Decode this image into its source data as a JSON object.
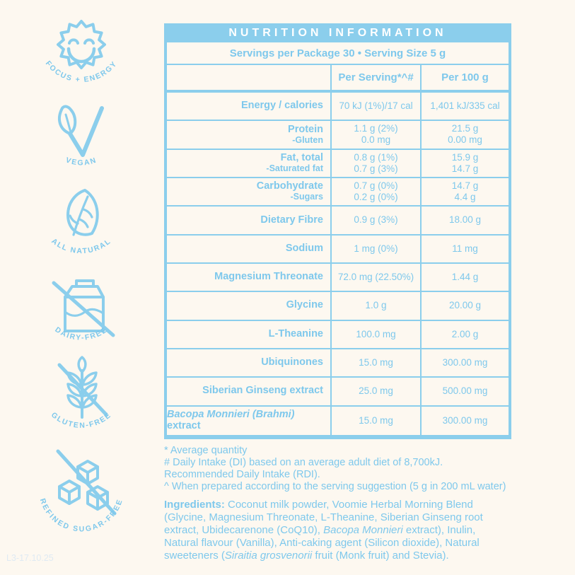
{
  "colors": {
    "blue": "#8BCEEC",
    "blue_text": "#7EC8EC",
    "background": "#FDF8F0",
    "title_text": "#FFFFFF",
    "batch_code_text": "#DFEAF3"
  },
  "badges": [
    {
      "icon": "sun-smile-icon",
      "label": "FOCUS + ENERGY"
    },
    {
      "icon": "leaf-check-icon",
      "label": "VEGAN"
    },
    {
      "icon": "leaf-icon",
      "label": "ALL NATURAL"
    },
    {
      "icon": "milk-carton-crossed-icon",
      "label": "DAIRY-FREE"
    },
    {
      "icon": "wheat-crossed-icon",
      "label": "GLUTEN-FREE"
    },
    {
      "icon": "sugar-cubes-crossed-icon",
      "label": "REFINED SUGAR-FREE"
    }
  ],
  "table": {
    "title": "NUTRITION INFORMATION",
    "servings_line": "Servings per Package 30  •  Serving Size 5 g",
    "col_headers": {
      "serving": "Per Serving*^#",
      "per100": "Per 100 g"
    },
    "rows": [
      {
        "label": "Energy / calories",
        "serving": [
          "70 kJ (1%)/17 cal"
        ],
        "per100": [
          "1,401 kJ/335 cal"
        ]
      },
      {
        "label": "Protein",
        "sublabel": "-Gluten",
        "serving": [
          "1.1 g (2%)",
          "0.0 mg"
        ],
        "per100": [
          "21.5 g",
          "0.00 mg"
        ]
      },
      {
        "label": "Fat, total",
        "sublabel": "-Saturated fat",
        "serving": [
          "0.8 g (1%)",
          "0.7 g (3%)"
        ],
        "per100": [
          "15.9 g",
          "14.7 g"
        ]
      },
      {
        "label": "Carbohydrate",
        "sublabel": "-Sugars",
        "serving": [
          "0.7 g (0%)",
          "0.2 g (0%)"
        ],
        "per100": [
          "14.7 g",
          "4.4 g"
        ]
      },
      {
        "label": "Dietary Fibre",
        "serving": [
          "0.9 g (3%)"
        ],
        "per100": [
          "18.00 g"
        ]
      },
      {
        "label": "Sodium",
        "serving": [
          "1 mg (0%)"
        ],
        "per100": [
          "11 mg"
        ]
      },
      {
        "label": "Magnesium Threonate",
        "serving": [
          "72.0 mg (22.50%)"
        ],
        "per100": [
          "1.44 g"
        ]
      },
      {
        "label": "Glycine",
        "serving": [
          "1.0 g"
        ],
        "per100": [
          "20.00 g"
        ]
      },
      {
        "label": "L-Theanine",
        "serving": [
          "100.0 mg"
        ],
        "per100": [
          "2.00 g"
        ]
      },
      {
        "label": "Ubiquinones",
        "serving": [
          "15.0 mg"
        ],
        "per100": [
          "300.00 mg"
        ]
      },
      {
        "label": "Siberian Ginseng extract",
        "serving": [
          "25.0 mg"
        ],
        "per100": [
          "500.00 mg"
        ]
      },
      {
        "label_italic": "Bacopa Monnieri (Brahmi)",
        "label": " extract",
        "serving": [
          "15.0 mg"
        ],
        "per100": [
          "300.00 mg"
        ]
      }
    ]
  },
  "footnotes": [
    "* Average quantity",
    "# Daily Intake (DI) based on an average adult diet of 8,700kJ. Recommended Daily Intake (RDI).",
    "^ When prepared according to the serving suggestion (5 g in 200 mL water)"
  ],
  "ingredients": {
    "label": "Ingredients:",
    "part1": " Coconut milk powder, Voomie Herbal Morning Blend (Glycine, Magnesium Threonate, L-Theanine, Siberian Ginseng root extract, Ubidecarenone (CoQ10), ",
    "italic1": "Bacopa Monnieri",
    "part2": " extract), Inulin, Natural flavour (Vanilla), Anti-caking agent (Silicon dioxide), Natural sweeteners (",
    "italic2": "Siraitia grosvenorii",
    "part3": " fruit (Monk fruit) and Stevia)."
  },
  "batch_code": "L3-17.10.25"
}
